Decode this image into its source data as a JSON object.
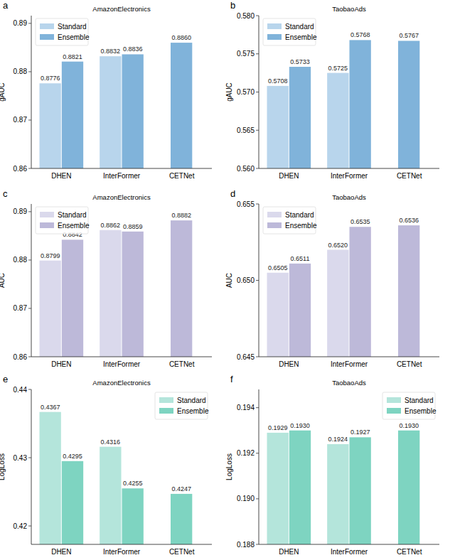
{
  "chart_data": [
    {
      "type": "bar",
      "panel": "a",
      "title": "AmazonElectronics",
      "y_label": "gAUC",
      "categories": [
        "DHEN",
        "InterFormer",
        "CETNet"
      ],
      "series": [
        {
          "name": "Standard",
          "color": "#b8d5ec",
          "values": [
            0.8776,
            0.8832,
            null
          ],
          "value_labels": [
            "0.8776",
            "0.8832",
            null
          ]
        },
        {
          "name": "Ensemble",
          "color": "#80b3da",
          "values": [
            0.8821,
            0.8836,
            0.886
          ],
          "value_labels": [
            "0.8821",
            "0.8836",
            "0.8860"
          ]
        }
      ],
      "ylim": [
        0.86,
        0.8916
      ],
      "yticks": [
        0.86,
        0.87,
        0.88,
        0.89
      ],
      "legend": "upper left",
      "data_labels": true,
      "grid": false
    },
    {
      "type": "bar",
      "panel": "b",
      "title": "TaobaoAds",
      "y_label": "gAUC",
      "categories": [
        "DHEN",
        "InterFormer",
        "CETNet"
      ],
      "series": [
        {
          "name": "Standard",
          "color": "#b8d5ec",
          "values": [
            0.5708,
            0.5725,
            null
          ],
          "value_labels": [
            "0.5708",
            "0.5725",
            null
          ]
        },
        {
          "name": "Ensemble",
          "color": "#80b3da",
          "values": [
            0.5733,
            0.5768,
            0.5767
          ],
          "value_labels": [
            "0.5733",
            "0.5768",
            "0.5767"
          ]
        }
      ],
      "ylim": [
        0.56,
        0.58
      ],
      "yticks": [
        {
          "value": 0.56,
          "label": "0.560"
        },
        0.565,
        {
          "value": 0.57,
          "label": "0.570"
        },
        0.575,
        {
          "value": 0.58,
          "label": "0.580"
        }
      ],
      "legend": "upper left",
      "data_labels": true,
      "grid": false
    },
    {
      "type": "bar",
      "panel": "c",
      "title": "AmazonElectronics",
      "y_label": "AUC",
      "categories": [
        "DHEN",
        "InterFormer",
        "CETNet"
      ],
      "series": [
        {
          "name": "Standard",
          "color": "#dad9ec",
          "values": [
            0.8799,
            0.8862,
            null
          ],
          "value_labels": [
            "0.8799",
            "0.8862",
            null
          ]
        },
        {
          "name": "Ensemble",
          "color": "#bdb9d9",
          "values": [
            0.8842,
            0.8859,
            0.8882
          ],
          "value_labels": [
            "0.8842",
            "0.8859",
            "0.8882"
          ]
        }
      ],
      "ylim": [
        0.86,
        0.8916
      ],
      "yticks": [
        0.86,
        0.87,
        0.88,
        0.89
      ],
      "legend": "upper left",
      "data_labels": true,
      "grid": false
    },
    {
      "type": "bar",
      "panel": "d",
      "title": "TaobaoAds",
      "y_label": "AUC",
      "categories": [
        "DHEN",
        "InterFormer",
        "CETNet"
      ],
      "series": [
        {
          "name": "Standard",
          "color": "#dad9ec",
          "values": [
            0.6505,
            0.652,
            null
          ],
          "value_labels": [
            "0.6505",
            "0.6520",
            null
          ]
        },
        {
          "name": "Ensemble",
          "color": "#bdb9d9",
          "values": [
            0.6511,
            0.6535,
            0.6536
          ],
          "value_labels": [
            "0.6511",
            "0.6535",
            "0.6536"
          ]
        }
      ],
      "ylim": [
        0.645,
        0.655
      ],
      "yticks": [
        0.645,
        {
          "value": 0.65,
          "label": "0.650"
        },
        0.655
      ],
      "legend": "upper left",
      "data_labels": true,
      "grid": false
    },
    {
      "type": "bar",
      "panel": "e",
      "title": "AmazonElectronics",
      "y_label": "LogLoss",
      "categories": [
        "DHEN",
        "InterFormer",
        "CETNet"
      ],
      "series": [
        {
          "name": "Standard",
          "color": "#b4e5db",
          "values": [
            0.4367,
            0.4316,
            null
          ],
          "value_labels": [
            "0.4367",
            "0.4316",
            null
          ]
        },
        {
          "name": "Ensemble",
          "color": "#7ed4c1",
          "values": [
            0.4295,
            0.4255,
            0.4247
          ],
          "value_labels": [
            "0.4295",
            "0.4255",
            "0.4247"
          ]
        }
      ],
      "ylim": [
        0.4173,
        0.44
      ],
      "yticks": [
        0.42,
        0.43,
        0.44
      ],
      "legend": "upper right",
      "data_labels": true,
      "grid": false
    },
    {
      "type": "bar",
      "panel": "f",
      "title": "TaobaoAds",
      "y_label": "LogLoss",
      "categories": [
        "DHEN",
        "InterFormer",
        "CETNet"
      ],
      "series": [
        {
          "name": "Standard",
          "color": "#b4e5db",
          "values": [
            0.1929,
            0.1924,
            null
          ],
          "value_labels": [
            "0.1929",
            "0.1924",
            null
          ]
        },
        {
          "name": "Ensemble",
          "color": "#7ed4c1",
          "values": [
            0.193,
            0.1927,
            0.193
          ],
          "value_labels": [
            "0.1930",
            "0.1927",
            "0.1930"
          ]
        }
      ],
      "ylim": [
        0.188,
        0.1948
      ],
      "yticks": [
        0.188,
        {
          "value": 0.19,
          "label": "0.190"
        },
        0.192,
        0.194
      ],
      "legend": "upper right",
      "data_labels": true,
      "grid": false
    }
  ]
}
